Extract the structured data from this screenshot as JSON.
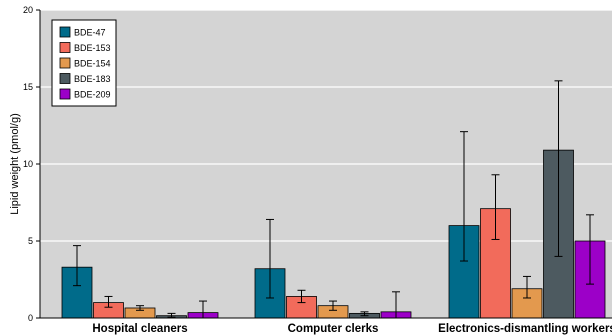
{
  "chart_data": {
    "type": "bar",
    "ylabel": "Lipid weight (pmol/g)",
    "ylim": [
      0,
      20
    ],
    "yticks": [
      "0",
      "5",
      "10",
      "15",
      "20"
    ],
    "grid": true,
    "legend_position": "top-left",
    "categories": [
      "Hospital cleaners",
      "Computer clerks",
      "Electronics-dismantling workers"
    ],
    "series": [
      {
        "name": "BDE-47",
        "color": "#006b8a",
        "values": [
          3.3,
          3.2,
          6.0
        ],
        "error_low": [
          2.1,
          1.3,
          3.7
        ],
        "error_high": [
          4.7,
          6.4,
          12.1
        ]
      },
      {
        "name": "BDE-153",
        "color": "#f26b5b",
        "values": [
          1.0,
          1.4,
          7.1
        ],
        "error_low": [
          0.7,
          1.0,
          5.1
        ],
        "error_high": [
          1.4,
          1.8,
          9.3
        ]
      },
      {
        "name": "BDE-154",
        "color": "#e3994e",
        "values": [
          0.65,
          0.8,
          1.9
        ],
        "error_low": [
          0.5,
          0.5,
          1.3
        ],
        "error_high": [
          0.8,
          1.1,
          2.7
        ]
      },
      {
        "name": "BDE-183",
        "color": "#4d5a60",
        "values": [
          0.15,
          0.3,
          10.9
        ],
        "error_low": [
          0.05,
          0.15,
          4.0
        ],
        "error_high": [
          0.3,
          0.4,
          15.4
        ]
      },
      {
        "name": "BDE-209",
        "color": "#9c00c8",
        "values": [
          0.35,
          0.4,
          5.0
        ],
        "error_low": [
          0.0,
          0.0,
          2.2
        ],
        "error_high": [
          1.1,
          1.7,
          6.7
        ]
      }
    ]
  }
}
